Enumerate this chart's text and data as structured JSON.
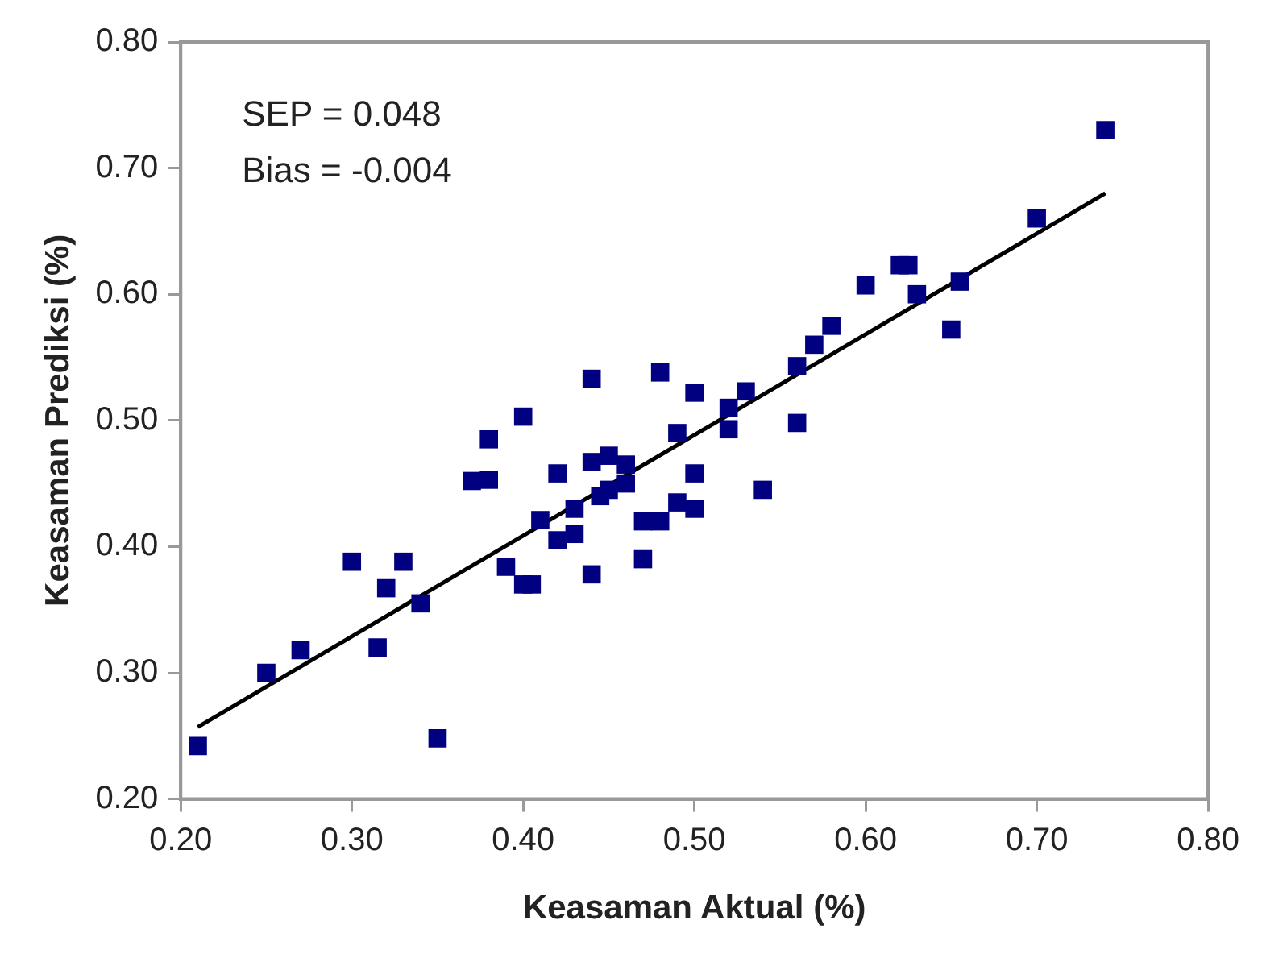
{
  "chart_data": {
    "type": "scatter",
    "xlabel": "Keasaman Aktual (%)",
    "ylabel": "Keasaman Prediksi (%)",
    "annotations": [
      "SEP = 0.048",
      "Bias = -0.004"
    ],
    "xlim": [
      0.2,
      0.8
    ],
    "xticks": [
      {
        "value": 0.2,
        "label": "0.20"
      },
      {
        "value": 0.3,
        "label": "0.30"
      },
      {
        "value": 0.4,
        "label": "0.40"
      },
      {
        "value": 0.5,
        "label": "0.50"
      },
      {
        "value": 0.6,
        "label": "0.60"
      },
      {
        "value": 0.7,
        "label": "0.70"
      },
      {
        "value": 0.8,
        "label": "0.80"
      }
    ],
    "ylim": [
      0.2,
      0.8
    ],
    "yticks": [
      {
        "value": 0.2,
        "label": "0.20"
      },
      {
        "value": 0.3,
        "label": "0.30"
      },
      {
        "value": 0.4,
        "label": "0.40"
      },
      {
        "value": 0.5,
        "label": "0.50"
      },
      {
        "value": 0.6,
        "label": "0.60"
      },
      {
        "value": 0.7,
        "label": "0.70"
      },
      {
        "value": 0.8,
        "label": "0.80"
      }
    ],
    "grid": false,
    "legend": false,
    "marker": "square",
    "series": [
      {
        "type": "scatter",
        "color": "#000080",
        "x": [
          0.21,
          0.25,
          0.27,
          0.3,
          0.315,
          0.32,
          0.33,
          0.34,
          0.35,
          0.37,
          0.38,
          0.38,
          0.39,
          0.4,
          0.4,
          0.405,
          0.41,
          0.42,
          0.42,
          0.43,
          0.43,
          0.44,
          0.44,
          0.44,
          0.445,
          0.45,
          0.45,
          0.46,
          0.46,
          0.47,
          0.47,
          0.48,
          0.48,
          0.49,
          0.49,
          0.5,
          0.5,
          0.5,
          0.52,
          0.52,
          0.53,
          0.54,
          0.56,
          0.56,
          0.57,
          0.58,
          0.6,
          0.62,
          0.625,
          0.63,
          0.65,
          0.655,
          0.7,
          0.74
        ],
        "values": [
          0.242,
          0.3,
          0.318,
          0.388,
          0.32,
          0.367,
          0.388,
          0.355,
          0.248,
          0.452,
          0.453,
          0.485,
          0.384,
          0.503,
          0.37,
          0.37,
          0.421,
          0.458,
          0.405,
          0.41,
          0.43,
          0.378,
          0.533,
          0.467,
          0.44,
          0.472,
          0.445,
          0.465,
          0.45,
          0.39,
          0.42,
          0.538,
          0.42,
          0.435,
          0.49,
          0.522,
          0.458,
          0.43,
          0.51,
          0.493,
          0.523,
          0.445,
          0.498,
          0.543,
          0.56,
          0.575,
          0.607,
          0.623,
          0.623,
          0.6,
          0.572,
          0.61,
          0.66,
          0.73
        ]
      },
      {
        "type": "line",
        "color": "#000000",
        "marker": "none",
        "line_style": "solid",
        "x": [
          0.21,
          0.74
        ],
        "values": [
          0.257,
          0.68
        ]
      }
    ]
  }
}
